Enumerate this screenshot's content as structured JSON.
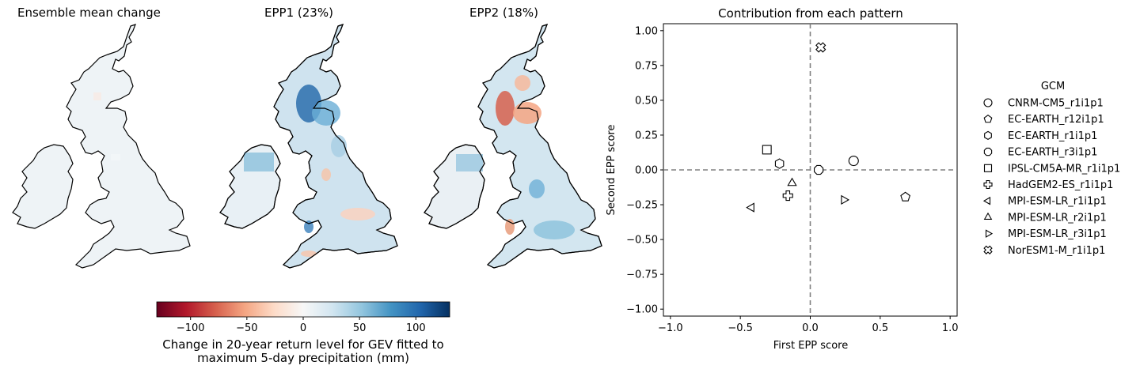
{
  "maps": [
    {
      "title": "Ensemble mean change"
    },
    {
      "title": "EPP1 (23%)"
    },
    {
      "title": "EPP2 (18%)"
    }
  ],
  "colorbar": {
    "ticks": [
      "−100",
      "−50",
      "0",
      "50",
      "100"
    ],
    "tick_values": [
      -100,
      -50,
      0,
      50,
      100
    ],
    "range": [
      -130,
      130
    ],
    "label_line1": "Change in 20-year return level for GEV fitted to",
    "label_line2": "maximum 5-day precipitation (mm)",
    "colormap": "RdBu",
    "colors": [
      "#67001f",
      "#b2182b",
      "#d6604d",
      "#f4a582",
      "#fddbc7",
      "#f7f7f7",
      "#d1e5f0",
      "#92c5de",
      "#4393c3",
      "#2166ac",
      "#053061"
    ]
  },
  "chart_data": {
    "type": "scatter",
    "title": "Contribution from each pattern",
    "xlabel": "First EPP score",
    "ylabel": "Second EPP score",
    "xlim": [
      -1.05,
      1.05
    ],
    "ylim": [
      -1.05,
      1.05
    ],
    "x_ticks": [
      -1.0,
      -0.5,
      0.0,
      0.5,
      1.0
    ],
    "x_tick_labels": [
      "−1.0",
      "−0.5",
      "0.0",
      "0.5",
      "1.0"
    ],
    "y_ticks": [
      1.0,
      0.75,
      0.5,
      0.25,
      0.0,
      -0.25,
      -0.5,
      -0.75,
      -1.0
    ],
    "y_tick_labels": [
      "1.00",
      "0.75",
      "0.50",
      "0.25",
      "0.00",
      "−0.25",
      "−0.50",
      "−0.75",
      "−1.00"
    ],
    "reference_lines": {
      "x": 0,
      "y": 0,
      "style": "dashed",
      "color": "#808080"
    },
    "legend": {
      "title": "GCM",
      "placement": "right"
    },
    "series": [
      {
        "name": "CNRM-CM5_r1i1p1",
        "marker": "circle",
        "x": 0.31,
        "y": 0.065
      },
      {
        "name": "EC-EARTH_r12i1p1",
        "marker": "pentagon",
        "x": 0.68,
        "y": -0.195
      },
      {
        "name": "EC-EARTH_r1i1p1",
        "marker": "hexagon",
        "x": -0.22,
        "y": 0.045
      },
      {
        "name": "EC-EARTH_r3i1p1",
        "marker": "octagon",
        "x": 0.06,
        "y": 0.0
      },
      {
        "name": "IPSL-CM5A-MR_r1i1p1",
        "marker": "square",
        "x": -0.31,
        "y": 0.145
      },
      {
        "name": "HadGEM2-ES_r1i1p1",
        "marker": "plus",
        "x": -0.16,
        "y": -0.185
      },
      {
        "name": "MPI-ESM-LR_r1i1p1",
        "marker": "triangle-left",
        "x": -0.42,
        "y": -0.27
      },
      {
        "name": "MPI-ESM-LR_r2i1p1",
        "marker": "triangle-up",
        "x": -0.13,
        "y": -0.095
      },
      {
        "name": "MPI-ESM-LR_r3i1p1",
        "marker": "triangle-right",
        "x": 0.24,
        "y": -0.215
      },
      {
        "name": "NorESM1-M_r1i1p1",
        "marker": "x-filled",
        "x": 0.075,
        "y": 0.88
      }
    ]
  }
}
